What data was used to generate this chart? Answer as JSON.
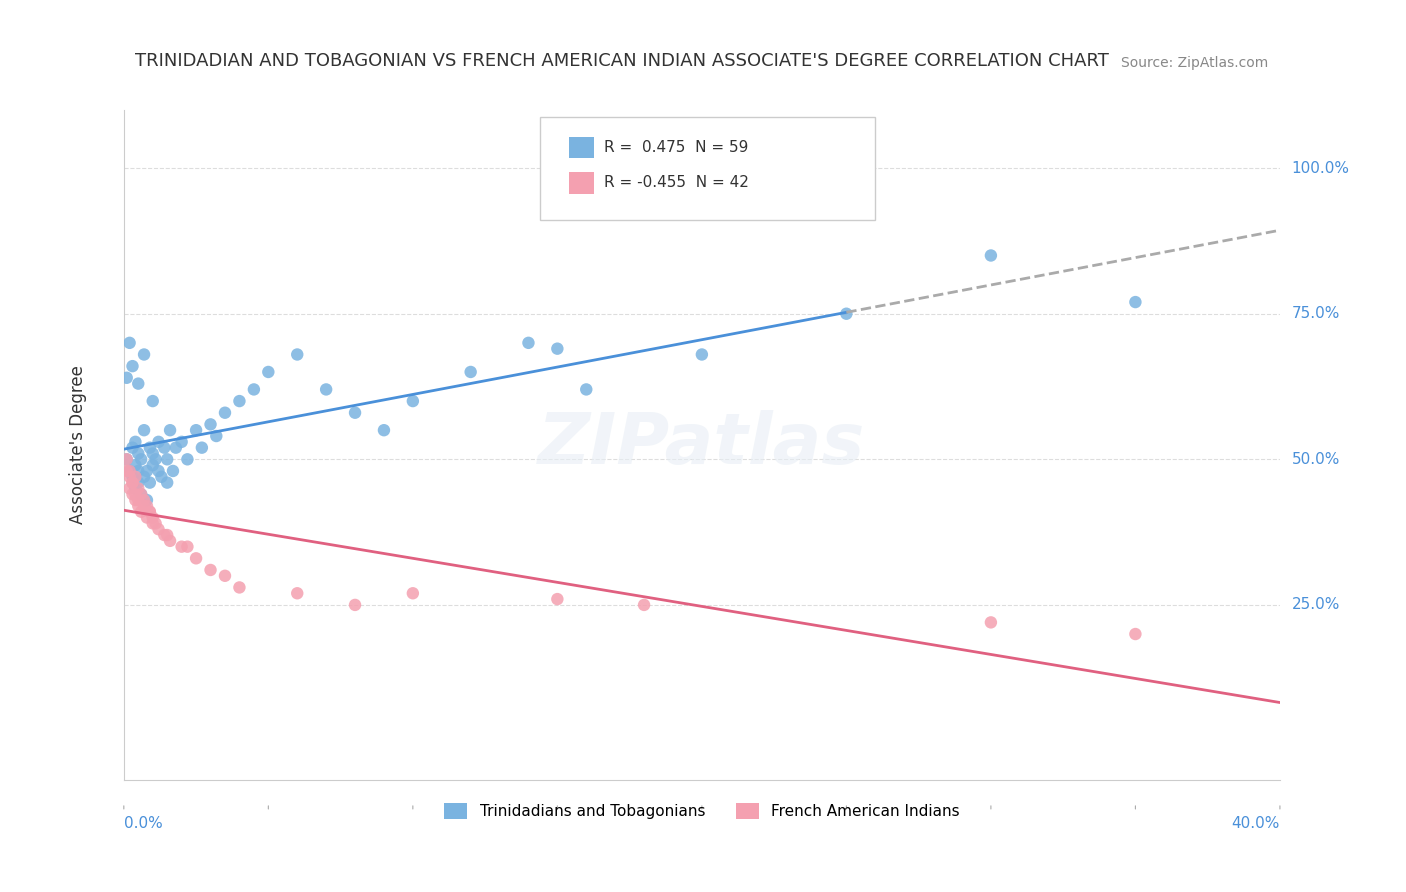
{
  "title": "TRINIDADIAN AND TOBAGONIAN VS FRENCH AMERICAN INDIAN ASSOCIATE'S DEGREE CORRELATION CHART",
  "source": "Source: ZipAtlas.com",
  "ylabel": "Associate's Degree",
  "xlim": [
    0.0,
    0.4
  ],
  "ylim": [
    -0.05,
    1.1
  ],
  "legend_r_blue": "R =  0.475",
  "legend_n_blue": "N = 59",
  "legend_r_pink": "R = -0.455",
  "legend_n_pink": "N = 42",
  "legend_label_blue": "Trinidadians and Tobagonians",
  "legend_label_pink": "French American Indians",
  "blue_color": "#7ab3e0",
  "pink_color": "#f4a0b0",
  "blue_line_color": "#4a90d9",
  "pink_line_color": "#e06080",
  "blue_scatter_x": [
    0.001,
    0.002,
    0.003,
    0.003,
    0.004,
    0.004,
    0.004,
    0.005,
    0.005,
    0.005,
    0.006,
    0.006,
    0.007,
    0.007,
    0.008,
    0.008,
    0.009,
    0.009,
    0.01,
    0.01,
    0.011,
    0.012,
    0.012,
    0.013,
    0.014,
    0.015,
    0.015,
    0.016,
    0.017,
    0.018,
    0.02,
    0.022,
    0.025,
    0.027,
    0.03,
    0.032,
    0.035,
    0.04,
    0.045,
    0.05,
    0.06,
    0.07,
    0.08,
    0.09,
    0.1,
    0.12,
    0.14,
    0.16,
    0.2,
    0.25,
    0.001,
    0.002,
    0.003,
    0.005,
    0.007,
    0.01,
    0.15,
    0.3,
    0.35
  ],
  "blue_scatter_y": [
    0.5,
    0.48,
    0.47,
    0.52,
    0.45,
    0.49,
    0.53,
    0.46,
    0.51,
    0.48,
    0.5,
    0.44,
    0.47,
    0.55,
    0.48,
    0.43,
    0.52,
    0.46,
    0.49,
    0.51,
    0.5,
    0.48,
    0.53,
    0.47,
    0.52,
    0.46,
    0.5,
    0.55,
    0.48,
    0.52,
    0.53,
    0.5,
    0.55,
    0.52,
    0.56,
    0.54,
    0.58,
    0.6,
    0.62,
    0.65,
    0.68,
    0.62,
    0.58,
    0.55,
    0.6,
    0.65,
    0.7,
    0.62,
    0.68,
    0.75,
    0.64,
    0.7,
    0.66,
    0.63,
    0.68,
    0.6,
    0.69,
    0.85,
    0.77
  ],
  "pink_scatter_x": [
    0.001,
    0.002,
    0.002,
    0.003,
    0.003,
    0.004,
    0.004,
    0.005,
    0.005,
    0.006,
    0.006,
    0.007,
    0.008,
    0.008,
    0.009,
    0.01,
    0.01,
    0.012,
    0.014,
    0.016,
    0.02,
    0.025,
    0.03,
    0.035,
    0.04,
    0.06,
    0.08,
    0.1,
    0.15,
    0.18,
    0.001,
    0.002,
    0.003,
    0.004,
    0.005,
    0.007,
    0.009,
    0.011,
    0.015,
    0.022,
    0.3,
    0.35
  ],
  "pink_scatter_y": [
    0.48,
    0.47,
    0.45,
    0.46,
    0.44,
    0.43,
    0.47,
    0.42,
    0.45,
    0.44,
    0.41,
    0.43,
    0.4,
    0.42,
    0.41,
    0.39,
    0.4,
    0.38,
    0.37,
    0.36,
    0.35,
    0.33,
    0.31,
    0.3,
    0.28,
    0.27,
    0.25,
    0.27,
    0.26,
    0.25,
    0.5,
    0.48,
    0.46,
    0.44,
    0.43,
    0.42,
    0.41,
    0.39,
    0.37,
    0.35,
    0.22,
    0.2
  ],
  "watermark": "ZIPatlas",
  "background_color": "#ffffff",
  "grid_color": "#dddddd",
  "ytick_labels": [
    "100.0%",
    "75.0%",
    "50.0%",
    "25.0%"
  ],
  "ytick_values": [
    1.0,
    0.75,
    0.5,
    0.25
  ]
}
